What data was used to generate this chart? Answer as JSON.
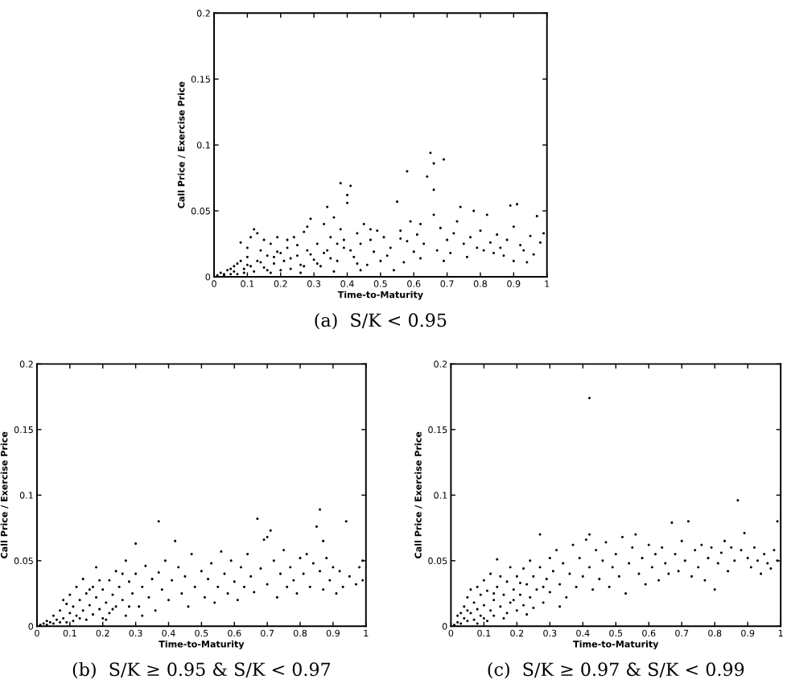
{
  "chart_data": [
    {
      "type": "scatter",
      "title": "(a)  S/K < 0.95",
      "xlabel": "Time-to-Maturity",
      "ylabel": "Call Price / Exercise Price",
      "xlim": [
        0,
        1
      ],
      "xticks": [
        0,
        0.1,
        0.2,
        0.3,
        0.4,
        0.5,
        0.6,
        0.7,
        0.8,
        0.9,
        1
      ],
      "ylim": [
        0,
        0.2
      ],
      "yticks": [
        0,
        0.05,
        0.1,
        0.15,
        0.2
      ],
      "grid": false,
      "marker": "circle",
      "series": [
        {
          "color": "#000000",
          "x": [
            0.01,
            0.03,
            0.05,
            0.07,
            0.09,
            0.02,
            0.04,
            0.06,
            0.06,
            0.08,
            0.09,
            0.1,
            0.08,
            0.1,
            0.11,
            0.12,
            0.1,
            0.12,
            0.13,
            0.14,
            0.15,
            0.16,
            0.17,
            0.18,
            0.19,
            0.2,
            0.15,
            0.13,
            0.17,
            0.19,
            0.21,
            0.22,
            0.23,
            0.24,
            0.25,
            0.26,
            0.27,
            0.28,
            0.29,
            0.3,
            0.22,
            0.26,
            0.28,
            0.31,
            0.32,
            0.33,
            0.34,
            0.35,
            0.36,
            0.37,
            0.38,
            0.38,
            0.39,
            0.4,
            0.4,
            0.41,
            0.33,
            0.36,
            0.39,
            0.42,
            0.43,
            0.44,
            0.45,
            0.46,
            0.47,
            0.48,
            0.49,
            0.5,
            0.44,
            0.47,
            0.51,
            0.52,
            0.53,
            0.55,
            0.56,
            0.57,
            0.58,
            0.58,
            0.59,
            0.6,
            0.54,
            0.56,
            0.61,
            0.62,
            0.63,
            0.64,
            0.65,
            0.66,
            0.66,
            0.66,
            0.67,
            0.68,
            0.69,
            0.7,
            0.62,
            0.69,
            0.71,
            0.72,
            0.74,
            0.75,
            0.76,
            0.77,
            0.78,
            0.79,
            0.8,
            0.73,
            0.81,
            0.82,
            0.83,
            0.84,
            0.85,
            0.86,
            0.87,
            0.88,
            0.89,
            0.9,
            0.91,
            0.9,
            0.92,
            0.93,
            0.95,
            0.96,
            0.97,
            0.98,
            0.99,
            0.94,
            0.03,
            0.05,
            0.07,
            0.11,
            0.14,
            0.16,
            0.18,
            0.2,
            0.23,
            0.25,
            0.27,
            0.29,
            0.31,
            0.34,
            0.35,
            0.37,
            0.41,
            0.43
          ],
          "values": [
            0.001,
            0.001,
            0.002,
            0.002,
            0.003,
            0.003,
            0.005,
            0.004,
            0.008,
            0.012,
            0.006,
            0.015,
            0.026,
            0.022,
            0.03,
            0.036,
            0.009,
            0.004,
            0.012,
            0.02,
            0.007,
            0.016,
            0.025,
            0.01,
            0.03,
            0.005,
            0.028,
            0.033,
            0.003,
            0.019,
            0.012,
            0.022,
            0.006,
            0.03,
            0.016,
            0.009,
            0.034,
            0.02,
            0.044,
            0.013,
            0.028,
            0.003,
            0.038,
            0.025,
            0.008,
            0.018,
            0.053,
            0.03,
            0.045,
            0.012,
            0.071,
            0.036,
            0.022,
            0.062,
            0.056,
            0.069,
            0.04,
            0.004,
            0.028,
            0.015,
            0.033,
            0.025,
            0.04,
            0.009,
            0.028,
            0.019,
            0.035,
            0.012,
            0.005,
            0.036,
            0.03,
            0.016,
            0.022,
            0.057,
            0.035,
            0.011,
            0.08,
            0.027,
            0.042,
            0.019,
            0.005,
            0.029,
            0.032,
            0.014,
            0.025,
            0.076,
            0.094,
            0.086,
            0.066,
            0.047,
            0.02,
            0.037,
            0.089,
            0.028,
            0.04,
            0.012,
            0.018,
            0.033,
            0.053,
            0.025,
            0.015,
            0.03,
            0.05,
            0.022,
            0.035,
            0.042,
            0.02,
            0.047,
            0.026,
            0.018,
            0.032,
            0.022,
            0.016,
            0.028,
            0.054,
            0.012,
            0.055,
            0.038,
            0.024,
            0.02,
            0.031,
            0.017,
            0.046,
            0.026,
            0.033,
            0.011,
            0.002,
            0.006,
            0.01,
            0.008,
            0.011,
            0.005,
            0.015,
            0.018,
            0.014,
            0.024,
            0.008,
            0.017,
            0.01,
            0.02,
            0.014,
            0.025,
            0.02,
            0.01
          ]
        }
      ]
    },
    {
      "type": "scatter",
      "title": "(b)  S/K ≥ 0.95 & S/K < 0.97",
      "xlabel": "Time-to-Maturity",
      "ylabel": "Call Price / Exercise Price",
      "xlim": [
        0,
        1
      ],
      "xticks": [
        0,
        0.1,
        0.2,
        0.3,
        0.4,
        0.5,
        0.6,
        0.7,
        0.8,
        0.9,
        1
      ],
      "ylim": [
        0,
        0.2
      ],
      "yticks": [
        0,
        0.05,
        0.1,
        0.15,
        0.2
      ],
      "grid": false,
      "marker": "circle",
      "series": [
        {
          "color": "#000000",
          "x": [
            0.01,
            0.02,
            0.03,
            0.04,
            0.05,
            0.06,
            0.07,
            0.03,
            0.05,
            0.07,
            0.08,
            0.09,
            0.1,
            0.1,
            0.11,
            0.11,
            0.12,
            0.12,
            0.13,
            0.14,
            0.14,
            0.15,
            0.15,
            0.16,
            0.17,
            0.17,
            0.18,
            0.18,
            0.19,
            0.2,
            0.2,
            0.21,
            0.22,
            0.22,
            0.23,
            0.24,
            0.24,
            0.25,
            0.26,
            0.27,
            0.27,
            0.28,
            0.29,
            0.3,
            0.3,
            0.31,
            0.32,
            0.33,
            0.34,
            0.35,
            0.36,
            0.37,
            0.37,
            0.38,
            0.39,
            0.4,
            0.41,
            0.42,
            0.43,
            0.44,
            0.45,
            0.46,
            0.47,
            0.48,
            0.5,
            0.51,
            0.52,
            0.53,
            0.54,
            0.55,
            0.56,
            0.57,
            0.58,
            0.59,
            0.6,
            0.61,
            0.62,
            0.63,
            0.64,
            0.65,
            0.66,
            0.67,
            0.68,
            0.69,
            0.7,
            0.71,
            0.7,
            0.72,
            0.73,
            0.74,
            0.75,
            0.76,
            0.77,
            0.78,
            0.79,
            0.8,
            0.81,
            0.82,
            0.83,
            0.84,
            0.85,
            0.86,
            0.86,
            0.87,
            0.87,
            0.88,
            0.89,
            0.9,
            0.91,
            0.92,
            0.93,
            0.94,
            0.95,
            0.97,
            0.98,
            0.99,
            0.99,
            0.08,
            0.09,
            0.13,
            0.16,
            0.19,
            0.21,
            0.23,
            0.26,
            0.28,
            0.32
          ],
          "values": [
            0.001,
            0.002,
            0.001,
            0.003,
            0.002,
            0.005,
            0.003,
            0.004,
            0.008,
            0.012,
            0.006,
            0.017,
            0.01,
            0.024,
            0.004,
            0.015,
            0.03,
            0.008,
            0.02,
            0.012,
            0.036,
            0.005,
            0.025,
            0.016,
            0.03,
            0.009,
            0.022,
            0.045,
            0.013,
            0.028,
            0.006,
            0.018,
            0.035,
            0.01,
            0.024,
            0.042,
            0.015,
            0.03,
            0.02,
            0.05,
            0.008,
            0.034,
            0.025,
            0.063,
            0.04,
            0.015,
            0.03,
            0.046,
            0.022,
            0.036,
            0.012,
            0.08,
            0.041,
            0.028,
            0.05,
            0.02,
            0.035,
            0.065,
            0.045,
            0.025,
            0.038,
            0.015,
            0.055,
            0.03,
            0.042,
            0.022,
            0.036,
            0.048,
            0.018,
            0.03,
            0.057,
            0.04,
            0.025,
            0.05,
            0.034,
            0.02,
            0.045,
            0.03,
            0.055,
            0.038,
            0.026,
            0.082,
            0.044,
            0.066,
            0.068,
            0.073,
            0.032,
            0.05,
            0.022,
            0.04,
            0.058,
            0.03,
            0.045,
            0.035,
            0.025,
            0.052,
            0.04,
            0.055,
            0.03,
            0.048,
            0.076,
            0.089,
            0.042,
            0.065,
            0.028,
            0.052,
            0.035,
            0.045,
            0.025,
            0.042,
            0.03,
            0.08,
            0.038,
            0.032,
            0.045,
            0.05,
            0.035,
            0.02,
            0.003,
            0.006,
            0.028,
            0.035,
            0.005,
            0.013,
            0.04,
            0.015,
            0.008
          ]
        }
      ]
    },
    {
      "type": "scatter",
      "title": "(c)  S/K ≥ 0.97 & S/K < 0.99",
      "xlabel": "Time-to-Maturity",
      "ylabel": "Call Price / Exercise Price",
      "xlim": [
        0,
        1
      ],
      "xticks": [
        0,
        0.1,
        0.2,
        0.3,
        0.4,
        0.5,
        0.6,
        0.7,
        0.8,
        0.9,
        1
      ],
      "ylim": [
        0,
        0.2
      ],
      "yticks": [
        0,
        0.05,
        0.1,
        0.15,
        0.2
      ],
      "grid": false,
      "marker": "circle",
      "series": [
        {
          "color": "#000000",
          "x": [
            0.01,
            0.02,
            0.03,
            0.02,
            0.04,
            0.04,
            0.05,
            0.05,
            0.06,
            0.06,
            0.07,
            0.07,
            0.08,
            0.08,
            0.09,
            0.09,
            0.1,
            0.1,
            0.11,
            0.11,
            0.12,
            0.12,
            0.13,
            0.13,
            0.14,
            0.14,
            0.15,
            0.15,
            0.16,
            0.16,
            0.17,
            0.18,
            0.18,
            0.19,
            0.2,
            0.2,
            0.21,
            0.22,
            0.22,
            0.23,
            0.24,
            0.24,
            0.25,
            0.26,
            0.27,
            0.27,
            0.28,
            0.29,
            0.3,
            0.3,
            0.31,
            0.32,
            0.33,
            0.34,
            0.35,
            0.36,
            0.37,
            0.38,
            0.39,
            0.4,
            0.41,
            0.42,
            0.42,
            0.42,
            0.43,
            0.44,
            0.45,
            0.46,
            0.47,
            0.48,
            0.49,
            0.5,
            0.51,
            0.52,
            0.53,
            0.54,
            0.55,
            0.56,
            0.57,
            0.58,
            0.59,
            0.6,
            0.61,
            0.62,
            0.63,
            0.64,
            0.65,
            0.66,
            0.67,
            0.68,
            0.69,
            0.7,
            0.71,
            0.72,
            0.73,
            0.74,
            0.75,
            0.76,
            0.77,
            0.78,
            0.79,
            0.8,
            0.81,
            0.82,
            0.83,
            0.84,
            0.85,
            0.86,
            0.87,
            0.88,
            0.89,
            0.9,
            0.91,
            0.92,
            0.93,
            0.94,
            0.95,
            0.96,
            0.97,
            0.98,
            0.99,
            0.99,
            0.03,
            0.05,
            0.08,
            0.1,
            0.13,
            0.17,
            0.19,
            0.21,
            0.23,
            0.25,
            0.28,
            0.33
          ],
          "values": [
            0.001,
            0.003,
            0.002,
            0.008,
            0.006,
            0.015,
            0.004,
            0.022,
            0.01,
            0.028,
            0.005,
            0.018,
            0.013,
            0.03,
            0.008,
            0.024,
            0.016,
            0.035,
            0.004,
            0.027,
            0.012,
            0.04,
            0.02,
            0.008,
            0.051,
            0.03,
            0.015,
            0.038,
            0.024,
            0.006,
            0.034,
            0.018,
            0.045,
            0.028,
            0.012,
            0.038,
            0.024,
            0.044,
            0.016,
            0.032,
            0.05,
            0.022,
            0.038,
            0.028,
            0.07,
            0.045,
            0.018,
            0.036,
            0.052,
            0.026,
            0.042,
            0.058,
            0.032,
            0.048,
            0.022,
            0.04,
            0.062,
            0.03,
            0.052,
            0.038,
            0.066,
            0.174,
            0.07,
            0.045,
            0.028,
            0.058,
            0.036,
            0.05,
            0.064,
            0.03,
            0.045,
            0.055,
            0.038,
            0.068,
            0.025,
            0.048,
            0.06,
            0.07,
            0.04,
            0.052,
            0.032,
            0.062,
            0.045,
            0.055,
            0.035,
            0.06,
            0.048,
            0.04,
            0.079,
            0.055,
            0.042,
            0.065,
            0.05,
            0.08,
            0.038,
            0.058,
            0.045,
            0.062,
            0.035,
            0.052,
            0.06,
            0.028,
            0.048,
            0.056,
            0.065,
            0.042,
            0.06,
            0.05,
            0.096,
            0.058,
            0.071,
            0.052,
            0.045,
            0.06,
            0.05,
            0.04,
            0.055,
            0.048,
            0.044,
            0.058,
            0.08,
            0.05,
            0.01,
            0.012,
            0.002,
            0.006,
            0.025,
            0.01,
            0.02,
            0.033,
            0.009,
            0.014,
            0.03,
            0.015
          ]
        }
      ]
    }
  ]
}
